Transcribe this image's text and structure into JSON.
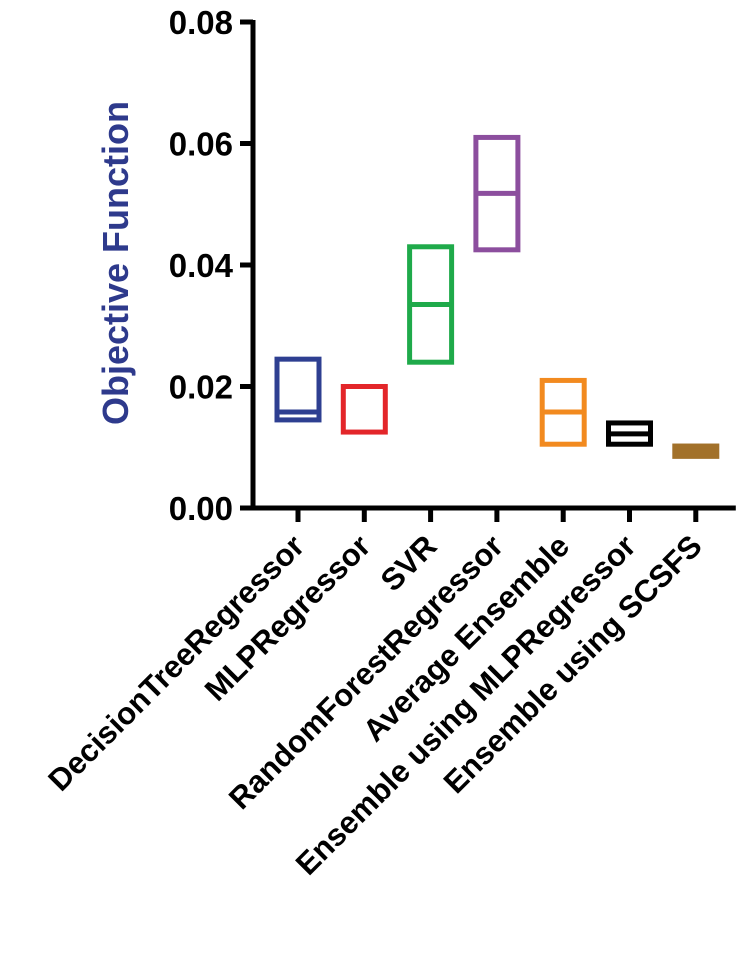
{
  "chart_data": {
    "type": "floating-bar",
    "title": "",
    "xlabel": "",
    "ylabel": "Objective Function",
    "ylabel_color": "#2E3A8C",
    "ylim": [
      0,
      0.08
    ],
    "yticks": [
      0.0,
      0.02,
      0.04,
      0.06,
      0.08
    ],
    "ytick_labels": [
      "0.00",
      "0.02",
      "0.04",
      "0.06",
      "0.08"
    ],
    "categories": [
      "DecisionTreeRegressor",
      "MLPRegressor",
      "SVR",
      "RandomForestRegressor",
      "Average Ensemble",
      "Ensemble using MLPRegressor",
      "Ensemble using SCSFS"
    ],
    "series": [
      {
        "name": "DecisionTreeRegressor",
        "min": 0.0145,
        "max": 0.0245,
        "line": 0.0158,
        "color": "#2E3F91",
        "filled": false
      },
      {
        "name": "MLPRegressor",
        "min": 0.0125,
        "max": 0.02,
        "line": null,
        "color": "#E3262A",
        "filled": false
      },
      {
        "name": "SVR",
        "min": 0.024,
        "max": 0.043,
        "line": 0.0335,
        "color": "#1FAA4A",
        "filled": false
      },
      {
        "name": "RandomForestRegressor",
        "min": 0.0425,
        "max": 0.061,
        "line": 0.0518,
        "color": "#8C4E9E",
        "filled": false
      },
      {
        "name": "Average Ensemble",
        "min": 0.0105,
        "max": 0.021,
        "line": 0.0158,
        "color": "#F28A1F",
        "filled": false
      },
      {
        "name": "Ensemble using MLPRegressor",
        "min": 0.0105,
        "max": 0.014,
        "line": 0.0122,
        "color": "#000000",
        "filled": false
      },
      {
        "name": "Ensemble using SCSFS",
        "min": 0.0085,
        "max": 0.0102,
        "line": null,
        "color": "#A2712A",
        "filled": true
      }
    ]
  }
}
